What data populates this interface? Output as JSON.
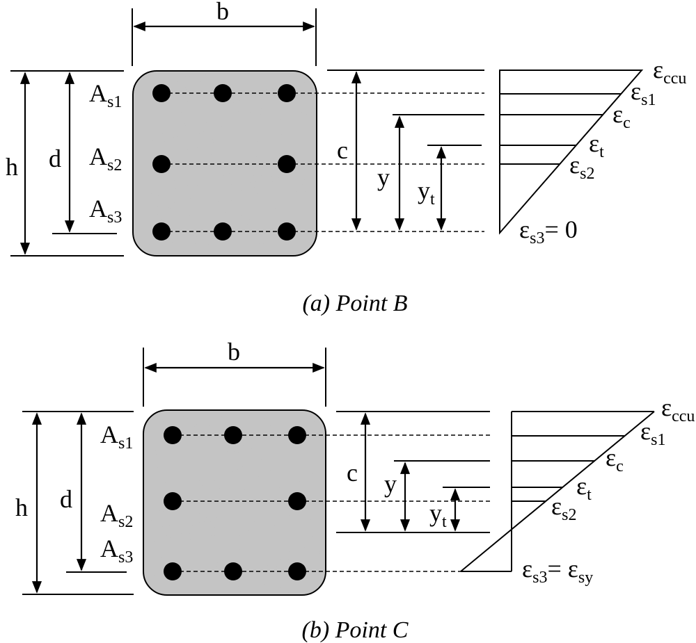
{
  "colors": {
    "ink": "#000000",
    "concrete_light": "#d7d7d7",
    "concrete_dark": "#5a5a5a",
    "background": "#ffffff"
  },
  "panel_a": {
    "caption": "(a) Point B",
    "width_label": "b",
    "height_label": "h",
    "depth_label": "d",
    "neutral_label": "c",
    "y_label": "y",
    "yt_label": "y",
    "yt_sub": "t",
    "steel": [
      {
        "main": "A",
        "sub": "s1"
      },
      {
        "main": "A",
        "sub": "s2"
      },
      {
        "main": "A",
        "sub": "s3"
      }
    ],
    "strains": [
      {
        "main": "ε",
        "sub": "ccu",
        "suffix": ""
      },
      {
        "main": "ε",
        "sub": "s1",
        "suffix": ""
      },
      {
        "main": "ε",
        "sub": "c",
        "suffix": ""
      },
      {
        "main": "ε",
        "sub": "t",
        "suffix": ""
      },
      {
        "main": "ε",
        "sub": "s2",
        "suffix": ""
      }
    ],
    "bottom_strain": {
      "main": "ε",
      "sub": "s3",
      "eq": "= 0"
    }
  },
  "panel_b": {
    "caption": "(b) Point C",
    "width_label": "b",
    "height_label": "h",
    "depth_label": "d",
    "neutral_label": "c",
    "y_label": "y",
    "yt_label": "y",
    "yt_sub": "t",
    "steel": [
      {
        "main": "A",
        "sub": "s1"
      },
      {
        "main": "A",
        "sub": "s2"
      },
      {
        "main": "A",
        "sub": "s3"
      }
    ],
    "strains": [
      {
        "main": "ε",
        "sub": "ccu"
      },
      {
        "main": "ε",
        "sub": "s1"
      },
      {
        "main": "ε",
        "sub": "c"
      },
      {
        "main": "ε",
        "sub": "t"
      },
      {
        "main": "ε",
        "sub": "s2"
      }
    ],
    "bottom_strain": {
      "main": "ε",
      "sub": "s3",
      "eq": "= ε",
      "eq_sub": "sy"
    }
  }
}
